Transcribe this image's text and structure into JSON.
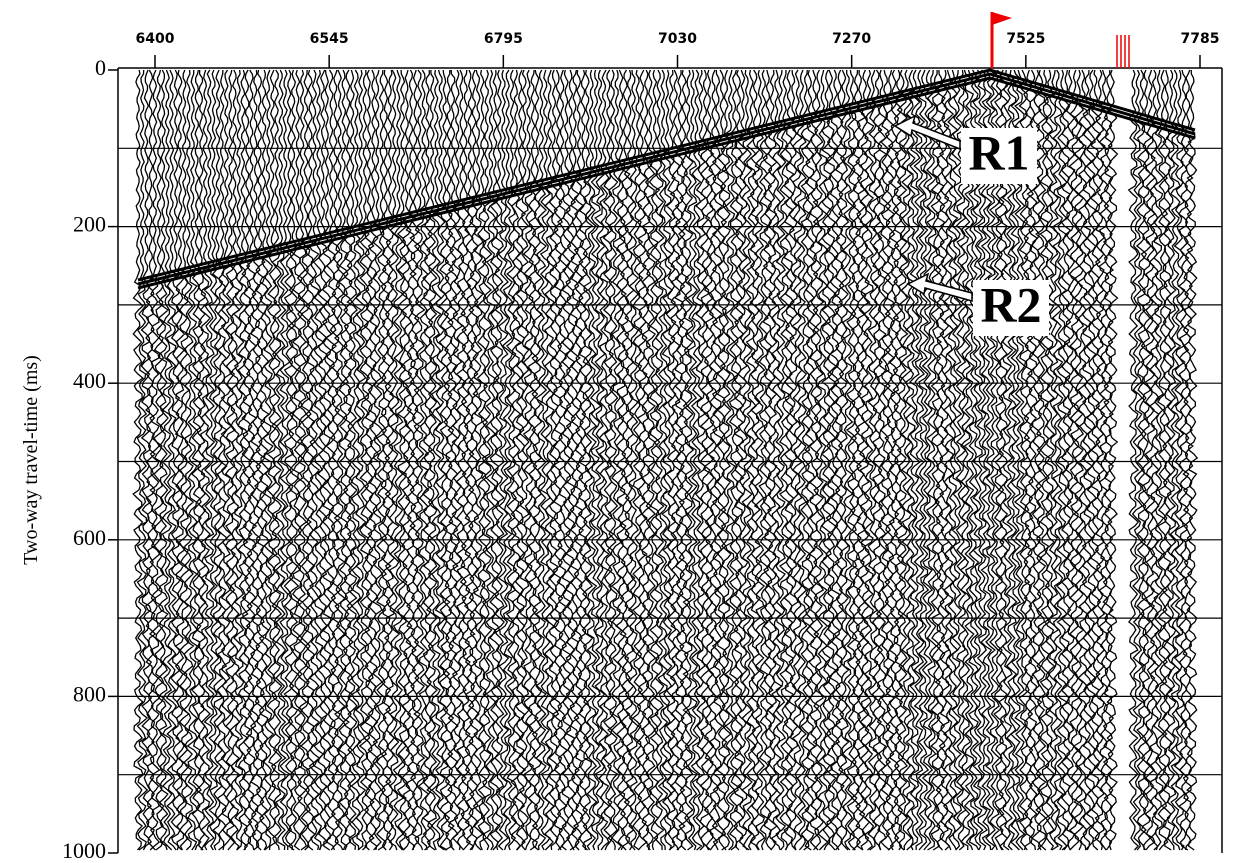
{
  "chart_data": {
    "type": "seismic",
    "ylabel": "Two-way travel-time (ms)",
    "top_labels": [
      "6400",
      "6545",
      "6795",
      "7030",
      "7270",
      "7525",
      "7785"
    ],
    "ylim": [
      0,
      1000
    ],
    "yticks": [
      0,
      200,
      400,
      600,
      800,
      1000
    ],
    "ygrid": [
      100,
      200,
      300,
      400,
      500,
      600,
      700,
      800,
      900
    ],
    "annotations": [
      "R1",
      "R2"
    ]
  }
}
